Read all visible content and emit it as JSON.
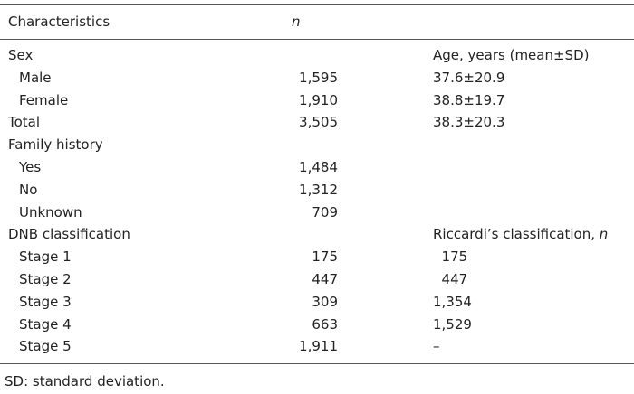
{
  "header": {
    "col1": "Characteristics",
    "col2": "n"
  },
  "rows": [
    {
      "label": "Sex",
      "n": "",
      "right": "Age, years (mean±SD)",
      "indent": false
    },
    {
      "label": "Male",
      "n": "1,595",
      "right": "37.6±20.9",
      "indent": true
    },
    {
      "label": "Female",
      "n": "1,910",
      "right": "38.8±19.7",
      "indent": true
    },
    {
      "label": "Total",
      "n": "3,505",
      "right": "38.3±20.3",
      "indent": false
    },
    {
      "label": "Family history",
      "n": "",
      "right": "",
      "indent": false
    },
    {
      "label": "Yes",
      "n": "1,484",
      "right": "",
      "indent": true
    },
    {
      "label": "No",
      "n": "1,312",
      "right": "",
      "indent": true
    },
    {
      "label": "Unknown",
      "n": "709",
      "right": "",
      "indent": true
    },
    {
      "label": "DNB classification",
      "n": "",
      "right": "Riccardi’s classification, ",
      "right_italic": "n",
      "indent": false
    },
    {
      "label": "Stage 1",
      "n": "175",
      "right": "  175",
      "indent": true
    },
    {
      "label": "Stage 2",
      "n": "447",
      "right": "  447",
      "indent": true
    },
    {
      "label": "Stage 3",
      "n": "309",
      "right": "1,354",
      "indent": true
    },
    {
      "label": "Stage 4",
      "n": "663",
      "right": "1,529",
      "indent": true
    },
    {
      "label": "Stage 5",
      "n": "1,911",
      "right": "–",
      "indent": true
    }
  ],
  "footnote": "SD: standard deviation."
}
